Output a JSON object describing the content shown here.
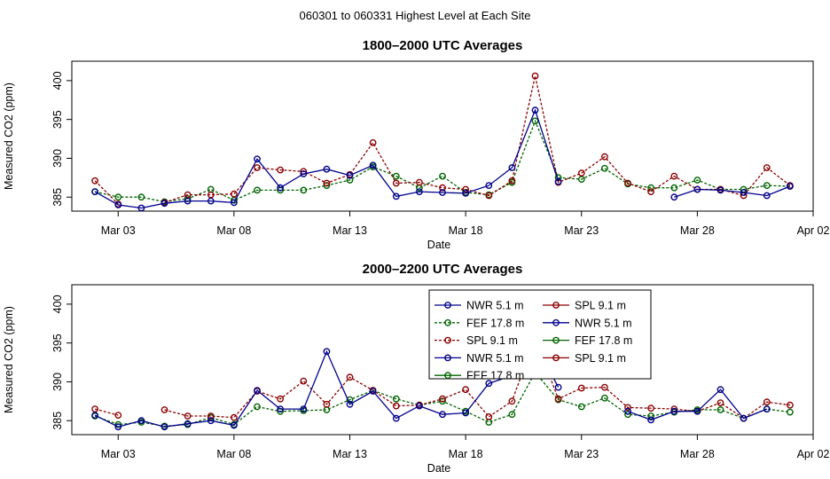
{
  "suptitle": "060301  to  060331 Highest Level at Each Site",
  "colors": {
    "NWR": "#00008b",
    "FEF": "#006400",
    "SPL": "#8b0000"
  },
  "chart_data": [
    {
      "type": "line",
      "title": "1800–2000 UTC Averages",
      "xlabel": "Date",
      "ylabel": "Measured CO2 (ppm)",
      "xlim": [
        0,
        32
      ],
      "ylim": [
        383.2,
        402.5
      ],
      "xticks": [
        {
          "x": 2,
          "label": "Mar 03"
        },
        {
          "x": 7,
          "label": "Mar 08"
        },
        {
          "x": 12,
          "label": "Mar 13"
        },
        {
          "x": 17,
          "label": "Mar 18"
        },
        {
          "x": 22,
          "label": "Mar 23"
        },
        {
          "x": 27,
          "label": "Mar 28"
        },
        {
          "x": 32,
          "label": "Apr 02"
        }
      ],
      "yticks": [
        385,
        390,
        395,
        400
      ],
      "x": [
        1,
        2,
        3,
        4,
        5,
        6,
        7,
        8,
        9,
        10,
        11,
        12,
        13,
        14,
        15,
        16,
        17,
        18,
        19,
        20,
        21,
        22,
        23,
        24,
        25,
        26,
        27,
        28,
        29,
        30,
        31
      ],
      "series": [
        {
          "name": "NWR  5.1 m",
          "site": "NWR",
          "values": [
            385.7,
            384.0,
            383.6,
            384.2,
            384.5,
            384.5,
            384.3,
            389.9,
            386.2,
            388.0,
            388.6,
            387.8,
            389.1,
            385.1,
            385.7,
            385.6,
            385.5,
            386.5,
            388.8,
            396.2,
            387.0,
            null,
            null,
            null,
            null,
            385.0,
            386.0,
            385.9,
            385.6,
            385.2,
            386.4
          ]
        },
        {
          "name": "FEF  17.8 m",
          "site": "FEF",
          "values": [
            385.7,
            385.0,
            385.0,
            384.4,
            384.8,
            386.0,
            384.6,
            385.9,
            385.9,
            385.9,
            386.5,
            387.2,
            388.9,
            387.7,
            386.2,
            387.7,
            385.6,
            385.3,
            386.9,
            394.8,
            387.5,
            387.3,
            388.7,
            386.7,
            386.2,
            386.2,
            387.2,
            386.0,
            386.0,
            386.5,
            386.4
          ]
        },
        {
          "name": "SPL  9.1 m",
          "site": "SPL",
          "values": [
            387.1,
            384.1,
            null,
            384.3,
            385.3,
            385.3,
            385.4,
            388.8,
            388.5,
            388.3,
            386.8,
            387.9,
            392.0,
            386.8,
            386.9,
            386.2,
            386.0,
            385.2,
            387.1,
            400.6,
            386.9,
            388.1,
            390.2,
            386.8,
            385.7,
            387.7,
            386.0,
            386.0,
            385.2,
            388.8,
            386.5
          ]
        }
      ]
    },
    {
      "type": "line",
      "title": "2000–2200 UTC Averages",
      "xlabel": "Date",
      "ylabel": "Measured CO2 (ppm)",
      "xlim": [
        0,
        32
      ],
      "ylim": [
        383.2,
        402.5
      ],
      "xticks": [
        {
          "x": 2,
          "label": "Mar 03"
        },
        {
          "x": 7,
          "label": "Mar 08"
        },
        {
          "x": 12,
          "label": "Mar 13"
        },
        {
          "x": 17,
          "label": "Mar 18"
        },
        {
          "x": 22,
          "label": "Mar 23"
        },
        {
          "x": 27,
          "label": "Mar 28"
        },
        {
          "x": 32,
          "label": "Apr 02"
        }
      ],
      "yticks": [
        385,
        390,
        395,
        400
      ],
      "x": [
        1,
        2,
        3,
        4,
        5,
        6,
        7,
        8,
        9,
        10,
        11,
        12,
        13,
        14,
        15,
        16,
        17,
        18,
        19,
        20,
        21,
        22,
        23,
        24,
        25,
        26,
        27,
        28,
        29,
        30,
        31
      ],
      "series": [
        {
          "name": "NWR  5.1 m",
          "site": "NWR",
          "values": [
            385.7,
            384.2,
            385.0,
            384.2,
            384.6,
            385.0,
            384.4,
            388.9,
            386.5,
            386.5,
            393.9,
            387.1,
            388.8,
            385.3,
            386.9,
            385.8,
            386.0,
            389.8,
            390.8,
            395.0,
            389.3,
            null,
            null,
            386.2,
            385.1,
            386.2,
            386.2,
            389.0,
            385.3,
            386.5,
            null
          ]
        },
        {
          "name": "FEF  17.8 m",
          "site": "FEF",
          "values": [
            385.6,
            384.5,
            384.8,
            384.3,
            384.5,
            385.4,
            384.5,
            386.8,
            386.2,
            386.3,
            386.4,
            387.7,
            388.9,
            387.8,
            387.0,
            387.5,
            386.2,
            384.8,
            385.8,
            391.2,
            387.7,
            386.8,
            387.9,
            385.8,
            385.6,
            386.1,
            386.4,
            386.4,
            385.3,
            386.5,
            386.1
          ]
        },
        {
          "name": "SPL  9.1 m",
          "site": "SPL",
          "values": [
            386.5,
            385.7,
            null,
            386.4,
            385.6,
            385.6,
            385.4,
            388.8,
            387.8,
            390.1,
            387.1,
            390.6,
            388.9,
            386.9,
            387.0,
            387.8,
            389.0,
            385.5,
            387.5,
            395.7,
            387.8,
            389.2,
            389.3,
            386.7,
            386.6,
            386.5,
            386.2,
            387.3,
            385.3,
            387.4,
            387.0
          ]
        }
      ],
      "legend": {
        "position": "top-center",
        "entries": [
          {
            "label": "NWR   5.1 m",
            "site": "NWR",
            "line": "solid"
          },
          {
            "label": "FEF   17.8 m",
            "site": "FEF",
            "line": "dashed"
          },
          {
            "label": "SPL   9.1 m",
            "site": "SPL",
            "line": "dashed"
          },
          {
            "label": "NWR   5.1 m",
            "site": "NWR",
            "line": "solid"
          },
          {
            "label": "FEF   17.8 m",
            "site": "FEF",
            "line": "solid"
          },
          {
            "label": "SPL   9.1 m",
            "site": "SPL",
            "line": "solid"
          },
          {
            "label": "NWR   5.1 m",
            "site": "NWR",
            "line": "solid"
          },
          {
            "label": "FEF   17.8 m",
            "site": "FEF",
            "line": "solid"
          },
          {
            "label": "SPL   9.1 m",
            "site": "SPL",
            "line": "solid"
          }
        ]
      }
    }
  ]
}
